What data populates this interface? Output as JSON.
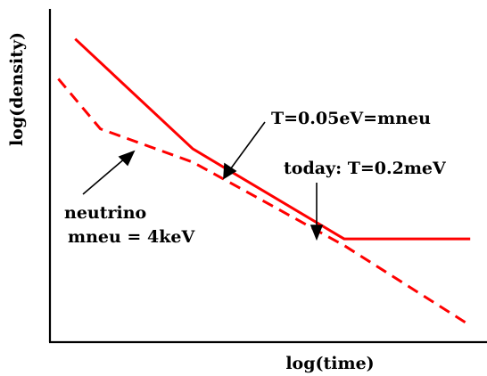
{
  "chart_data": {
    "type": "line",
    "title": "",
    "xlabel": "log(time)",
    "ylabel": "log(density)",
    "x_ticks": [],
    "y_ticks": [],
    "grid": false,
    "legend": "none",
    "series": [
      {
        "style": "solid",
        "color": "#ff0000",
        "points": [
          [
            0.06,
            0.91
          ],
          [
            0.34,
            0.58
          ],
          [
            0.7,
            0.31
          ],
          [
            1.0,
            0.31
          ]
        ]
      },
      {
        "style": "dashed",
        "color": "#ff0000",
        "points": [
          [
            0.02,
            0.79
          ],
          [
            0.12,
            0.64
          ],
          [
            0.34,
            0.54
          ],
          [
            0.7,
            0.29
          ],
          [
            1.0,
            0.05
          ]
        ]
      }
    ],
    "annotations": [
      {
        "text": "T=0.05eV=mneu",
        "points_to": [
          0.45,
          0.48
        ]
      },
      {
        "text": "today: T=0.2meV",
        "points_to": [
          0.7,
          0.31
        ]
      },
      {
        "text": "neutrino",
        "points_to": [
          0.22,
          0.59
        ]
      },
      {
        "text": "mneu = 4keV",
        "points_to": null
      }
    ],
    "xlim": [
      0,
      1.04
    ],
    "ylim": [
      0,
      1
    ]
  }
}
